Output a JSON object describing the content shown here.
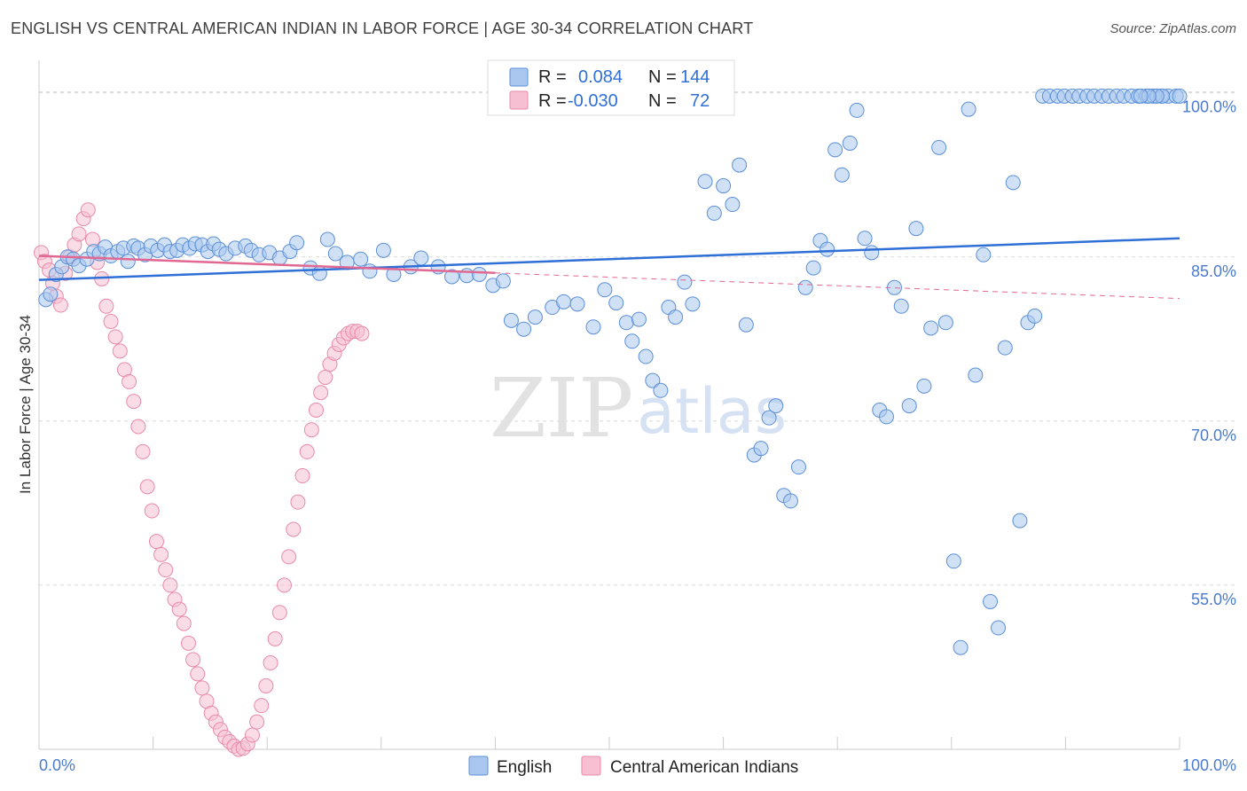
{
  "title": "ENGLISH VS CENTRAL AMERICAN INDIAN IN LABOR FORCE | AGE 30-34 CORRELATION CHART",
  "source": "Source: ZipAtlas.com",
  "watermark": {
    "zip": "ZIP",
    "atlas": "atlas"
  },
  "legend": {
    "r_label": "R =",
    "n_label": "N =",
    "english": {
      "r": "0.084",
      "n": "144"
    },
    "central": {
      "r": "-0.030",
      "n": "72"
    }
  },
  "bottom_legend": {
    "english": "English",
    "central": "Central American Indians"
  },
  "colors": {
    "english_fill": "#aac8ef",
    "english_stroke": "#5b8fd8",
    "english_line": "#2f6fd6",
    "central_fill": "#f6bfd2",
    "central_stroke": "#e98aa9",
    "central_line": "#e06892",
    "grid": "#d9d9d9",
    "axis_text": "#4a7bd0"
  },
  "chart_data": {
    "type": "scatter",
    "title": "ENGLISH VS CENTRAL AMERICAN INDIAN IN LABOR FORCE | AGE 30-34 CORRELATION CHART",
    "xlabel": "",
    "ylabel": "In Labor Force | Age 30-34",
    "xlim": [
      0,
      100
    ],
    "ylim": [
      40,
      102
    ],
    "x_tick_labels": [
      "0.0%",
      "100.0%"
    ],
    "y_ticks": [
      55,
      70,
      85,
      100
    ],
    "y_tick_labels": [
      "55.0%",
      "70.0%",
      "85.0%",
      "100.0%"
    ],
    "grid": true,
    "legend_position": "top-center",
    "series": [
      {
        "name": "English",
        "r": 0.084,
        "n": 144,
        "trend": {
          "x": [
            0,
            100
          ],
          "y": [
            82.9,
            86.7
          ]
        },
        "points": [
          [
            0.6,
            81.1
          ],
          [
            1.0,
            81.6
          ],
          [
            1.5,
            83.4
          ],
          [
            2.0,
            84.1
          ],
          [
            2.5,
            85.0
          ],
          [
            3.0,
            84.8
          ],
          [
            3.5,
            84.2
          ],
          [
            4.2,
            84.8
          ],
          [
            4.8,
            85.5
          ],
          [
            5.3,
            85.3
          ],
          [
            5.8,
            85.9
          ],
          [
            6.3,
            85.1
          ],
          [
            6.9,
            85.5
          ],
          [
            7.4,
            85.8
          ],
          [
            7.8,
            84.6
          ],
          [
            8.3,
            86.0
          ],
          [
            8.7,
            85.8
          ],
          [
            9.3,
            85.2
          ],
          [
            9.8,
            86.0
          ],
          [
            10.4,
            85.6
          ],
          [
            11.0,
            86.1
          ],
          [
            11.5,
            85.5
          ],
          [
            12.1,
            85.6
          ],
          [
            12.6,
            86.1
          ],
          [
            13.2,
            85.8
          ],
          [
            13.7,
            86.2
          ],
          [
            14.3,
            86.1
          ],
          [
            14.8,
            85.5
          ],
          [
            15.3,
            86.2
          ],
          [
            15.8,
            85.7
          ],
          [
            16.4,
            85.3
          ],
          [
            17.2,
            85.8
          ],
          [
            18.1,
            86.0
          ],
          [
            18.6,
            85.6
          ],
          [
            19.3,
            85.2
          ],
          [
            20.2,
            85.4
          ],
          [
            21.1,
            84.9
          ],
          [
            22.0,
            85.5
          ],
          [
            22.6,
            86.3
          ],
          [
            23.8,
            84.0
          ],
          [
            24.6,
            83.5
          ],
          [
            25.3,
            86.6
          ],
          [
            26.0,
            85.3
          ],
          [
            27.0,
            84.5
          ],
          [
            28.2,
            84.8
          ],
          [
            29.0,
            83.7
          ],
          [
            30.2,
            85.6
          ],
          [
            31.1,
            83.4
          ],
          [
            32.6,
            84.1
          ],
          [
            33.5,
            84.9
          ],
          [
            35.0,
            84.1
          ],
          [
            36.2,
            83.2
          ],
          [
            37.5,
            83.3
          ],
          [
            38.6,
            83.4
          ],
          [
            39.8,
            82.4
          ],
          [
            40.7,
            82.8
          ],
          [
            41.4,
            79.2
          ],
          [
            42.5,
            78.4
          ],
          [
            43.5,
            79.5
          ],
          [
            45.0,
            80.4
          ],
          [
            46.0,
            80.9
          ],
          [
            47.2,
            80.7
          ],
          [
            48.6,
            78.6
          ],
          [
            49.6,
            82.0
          ],
          [
            50.6,
            80.8
          ],
          [
            51.5,
            79.0
          ],
          [
            52.0,
            77.3
          ],
          [
            52.6,
            79.3
          ],
          [
            53.2,
            75.9
          ],
          [
            53.8,
            73.7
          ],
          [
            54.5,
            72.8
          ],
          [
            55.2,
            80.4
          ],
          [
            55.8,
            79.5
          ],
          [
            56.6,
            82.7
          ],
          [
            57.3,
            80.7
          ],
          [
            58.4,
            91.9
          ],
          [
            59.2,
            89.0
          ],
          [
            60.0,
            91.5
          ],
          [
            60.8,
            89.8
          ],
          [
            61.4,
            93.4
          ],
          [
            62.0,
            78.8
          ],
          [
            62.7,
            66.9
          ],
          [
            63.3,
            67.5
          ],
          [
            64.0,
            70.3
          ],
          [
            64.6,
            71.4
          ],
          [
            65.3,
            63.2
          ],
          [
            65.9,
            62.7
          ],
          [
            66.6,
            65.8
          ],
          [
            67.2,
            82.2
          ],
          [
            67.9,
            84.0
          ],
          [
            68.5,
            86.5
          ],
          [
            69.1,
            85.7
          ],
          [
            69.8,
            94.8
          ],
          [
            70.4,
            92.5
          ],
          [
            71.1,
            95.4
          ],
          [
            71.7,
            98.4
          ],
          [
            72.4,
            86.7
          ],
          [
            73.0,
            85.4
          ],
          [
            73.7,
            71.0
          ],
          [
            74.3,
            70.4
          ],
          [
            75.0,
            82.2
          ],
          [
            75.6,
            80.5
          ],
          [
            76.3,
            71.4
          ],
          [
            76.9,
            87.6
          ],
          [
            77.6,
            73.2
          ],
          [
            78.2,
            78.5
          ],
          [
            78.9,
            95.0
          ],
          [
            79.5,
            79.0
          ],
          [
            80.2,
            57.2
          ],
          [
            80.8,
            49.3
          ],
          [
            81.5,
            98.5
          ],
          [
            82.1,
            74.2
          ],
          [
            82.8,
            85.2
          ],
          [
            83.4,
            53.5
          ],
          [
            84.1,
            51.1
          ],
          [
            84.7,
            76.7
          ],
          [
            85.4,
            91.8
          ],
          [
            86.0,
            60.9
          ],
          [
            86.7,
            79.0
          ],
          [
            87.3,
            79.6
          ],
          [
            88.0,
            99.7
          ],
          [
            88.6,
            99.7
          ],
          [
            89.3,
            99.7
          ],
          [
            89.9,
            99.7
          ],
          [
            90.6,
            99.7
          ],
          [
            91.2,
            99.7
          ],
          [
            91.9,
            99.7
          ],
          [
            92.5,
            99.7
          ],
          [
            93.2,
            99.7
          ],
          [
            93.8,
            99.7
          ],
          [
            94.5,
            99.7
          ],
          [
            95.1,
            99.7
          ],
          [
            95.8,
            99.7
          ],
          [
            96.4,
            99.7
          ],
          [
            97.1,
            99.7
          ],
          [
            97.7,
            99.7
          ],
          [
            98.4,
            99.7
          ],
          [
            99.0,
            99.7
          ],
          [
            99.7,
            99.7
          ],
          [
            100.0,
            99.7
          ],
          [
            98.5,
            99.7
          ],
          [
            98.0,
            99.7
          ],
          [
            97.3,
            99.7
          ],
          [
            96.6,
            99.7
          ]
        ]
      },
      {
        "name": "Central American Indians",
        "r": -0.03,
        "n": 72,
        "trend": {
          "x": [
            0,
            100
          ],
          "y": [
            85.1,
            81.2
          ]
        },
        "points": [
          [
            0.2,
            85.4
          ],
          [
            0.5,
            84.6
          ],
          [
            0.9,
            83.8
          ],
          [
            1.2,
            82.6
          ],
          [
            1.5,
            81.4
          ],
          [
            1.9,
            80.6
          ],
          [
            2.3,
            83.5
          ],
          [
            2.7,
            85.0
          ],
          [
            3.1,
            86.1
          ],
          [
            3.5,
            87.1
          ],
          [
            3.9,
            88.5
          ],
          [
            4.3,
            89.3
          ],
          [
            4.7,
            86.6
          ],
          [
            5.1,
            84.5
          ],
          [
            5.5,
            83.0
          ],
          [
            5.9,
            80.5
          ],
          [
            6.3,
            79.1
          ],
          [
            6.7,
            77.7
          ],
          [
            7.1,
            76.4
          ],
          [
            7.5,
            74.7
          ],
          [
            7.9,
            73.6
          ],
          [
            8.3,
            71.8
          ],
          [
            8.7,
            69.5
          ],
          [
            9.1,
            67.2
          ],
          [
            9.5,
            64.0
          ],
          [
            9.9,
            61.8
          ],
          [
            10.3,
            59.0
          ],
          [
            10.7,
            57.8
          ],
          [
            11.1,
            56.4
          ],
          [
            11.5,
            55.0
          ],
          [
            11.9,
            53.7
          ],
          [
            12.3,
            52.8
          ],
          [
            12.7,
            51.5
          ],
          [
            13.1,
            49.7
          ],
          [
            13.5,
            48.2
          ],
          [
            13.9,
            46.9
          ],
          [
            14.3,
            45.6
          ],
          [
            14.7,
            44.4
          ],
          [
            15.1,
            43.3
          ],
          [
            15.5,
            42.5
          ],
          [
            15.9,
            41.8
          ],
          [
            16.3,
            41.1
          ],
          [
            16.7,
            40.7
          ],
          [
            17.1,
            40.3
          ],
          [
            17.5,
            40.0
          ],
          [
            17.9,
            40.1
          ],
          [
            18.3,
            40.5
          ],
          [
            18.7,
            41.3
          ],
          [
            19.1,
            42.5
          ],
          [
            19.5,
            44.0
          ],
          [
            19.9,
            45.8
          ],
          [
            20.3,
            47.9
          ],
          [
            20.7,
            50.1
          ],
          [
            21.1,
            52.5
          ],
          [
            21.5,
            55.0
          ],
          [
            21.9,
            57.6
          ],
          [
            22.3,
            60.1
          ],
          [
            22.7,
            62.6
          ],
          [
            23.1,
            65.0
          ],
          [
            23.5,
            67.2
          ],
          [
            23.9,
            69.2
          ],
          [
            24.3,
            71.0
          ],
          [
            24.7,
            72.6
          ],
          [
            25.1,
            74.0
          ],
          [
            25.5,
            75.2
          ],
          [
            25.9,
            76.2
          ],
          [
            26.3,
            77.0
          ],
          [
            26.7,
            77.6
          ],
          [
            27.1,
            78.0
          ],
          [
            27.5,
            78.2
          ],
          [
            27.9,
            78.2
          ],
          [
            28.3,
            78.0
          ]
        ]
      }
    ]
  }
}
